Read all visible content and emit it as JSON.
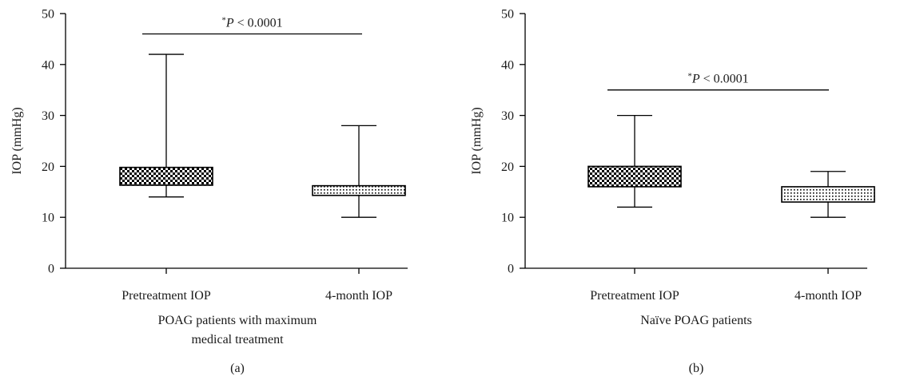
{
  "chart_data": [
    {
      "type": "box",
      "panel_label": "(a)",
      "ylabel": "IOP (mmHg)",
      "xlabel_lines": [
        "POAG patients with maximum",
        "medical treatment"
      ],
      "ylim": [
        0,
        50
      ],
      "yticks": [
        0,
        10,
        20,
        30,
        40,
        50
      ],
      "categories": [
        "Pretreatment IOP",
        "4-month IOP"
      ],
      "boxes": [
        {
          "category": "Pretreatment IOP",
          "min": 14,
          "q1": 16.3,
          "q3": 19.8,
          "max": 42,
          "pattern": "checker"
        },
        {
          "category": "4-month IOP",
          "min": 10,
          "q1": 14.3,
          "q3": 16.2,
          "max": 28,
          "pattern": "dots"
        }
      ],
      "annotation": {
        "star": "*",
        "p": "P",
        "text": " < 0.0001",
        "y": 46
      }
    },
    {
      "type": "box",
      "panel_label": "(b)",
      "ylabel": "IOP (mmHg)",
      "xlabel_lines": [
        "Naïve POAG patients"
      ],
      "ylim": [
        0,
        50
      ],
      "yticks": [
        0,
        10,
        20,
        30,
        40,
        50
      ],
      "categories": [
        "Pretreatment IOP",
        "4-month IOP"
      ],
      "boxes": [
        {
          "category": "Pretreatment IOP",
          "min": 12,
          "q1": 16,
          "q3": 20,
          "max": 30,
          "pattern": "checker"
        },
        {
          "category": "4-month IOP",
          "min": 10,
          "q1": 13,
          "q3": 16,
          "max": 19,
          "pattern": "dots"
        }
      ],
      "annotation": {
        "star": "*",
        "p": "P",
        "text": " < 0.0001",
        "y": 35
      }
    }
  ]
}
